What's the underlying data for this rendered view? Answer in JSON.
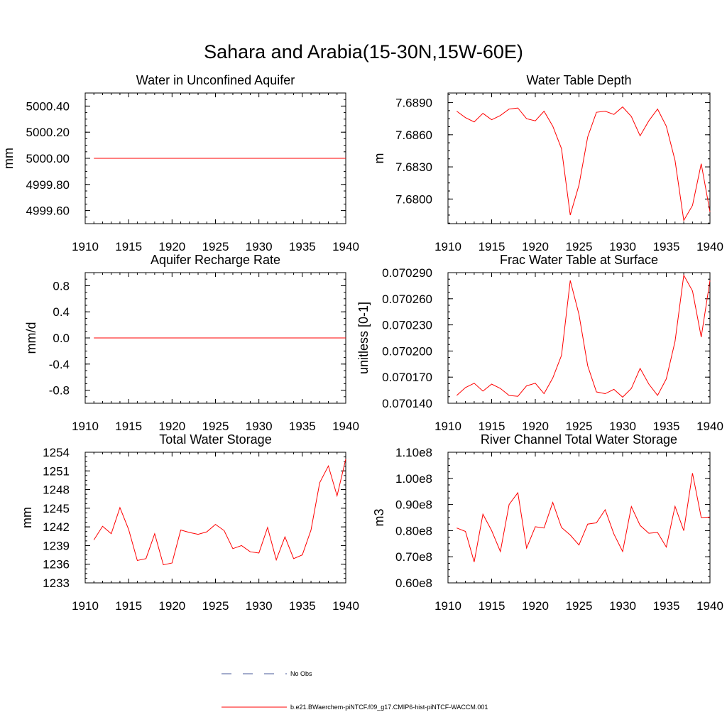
{
  "title": "Sahara and Arabia(15-30N,15W-60E)",
  "colors": {
    "model_line": "#ff0000",
    "obs_line": "#4a5a9a",
    "axes": "#000000"
  },
  "legend": {
    "entries": [
      {
        "label": "No Obs",
        "style": "dashed",
        "color": "#4a5a9a"
      },
      {
        "label": "b.e21.BWaerchem-piNTCF.f09_g17.CMIP6-hist-piNTCF-WACCM.001",
        "style": "solid",
        "color": "#ff0000"
      }
    ]
  },
  "chart_data": [
    {
      "type": "line",
      "title": "Water in Unconfined Aquifer",
      "ylabel": "mm",
      "xlim": [
        1910,
        1940
      ],
      "ylim": [
        4999.5,
        5000.5
      ],
      "xticks": [
        "1910",
        "1915",
        "1920",
        "1925",
        "1930",
        "1935",
        "1940"
      ],
      "yticks": [
        4999.6,
        4999.8,
        5000.0,
        5000.2,
        5000.4
      ],
      "ytick_labels": [
        "4999.60",
        "4999.80",
        "5000.00",
        "5000.20",
        "5000.40"
      ],
      "series": [
        {
          "x": [
            1911,
            1912,
            1913,
            1914,
            1915,
            1916,
            1917,
            1918,
            1919,
            1920,
            1921,
            1922,
            1923,
            1924,
            1925,
            1926,
            1927,
            1928,
            1929,
            1930,
            1931,
            1932,
            1933,
            1934,
            1935,
            1936,
            1937,
            1938,
            1939,
            1940
          ],
          "values": [
            5000,
            5000,
            5000,
            5000,
            5000,
            5000,
            5000,
            5000,
            5000,
            5000,
            5000,
            5000,
            5000,
            5000,
            5000,
            5000,
            5000,
            5000,
            5000,
            5000,
            5000,
            5000,
            5000,
            5000,
            5000,
            5000,
            5000,
            5000,
            5000,
            5000
          ]
        }
      ]
    },
    {
      "type": "line",
      "title": "Water Table Depth",
      "ylabel": "m",
      "xlim": [
        1910,
        1940
      ],
      "ylim": [
        7.6777,
        7.6899
      ],
      "xticks": [
        "1910",
        "1915",
        "1920",
        "1925",
        "1930",
        "1935",
        "1940"
      ],
      "yticks": [
        7.68,
        7.683,
        7.686,
        7.689
      ],
      "ytick_labels": [
        "7.6800",
        "7.6830",
        "7.6860",
        "7.6890"
      ],
      "series": [
        {
          "x": [
            1911,
            1912,
            1913,
            1914,
            1915,
            1916,
            1917,
            1918,
            1919,
            1920,
            1921,
            1922,
            1923,
            1924,
            1925,
            1926,
            1927,
            1928,
            1929,
            1930,
            1931,
            1932,
            1933,
            1934,
            1935,
            1936,
            1937,
            1938,
            1939,
            1940
          ],
          "values": [
            7.6882,
            7.6876,
            7.6872,
            7.688,
            7.6874,
            7.6878,
            7.6884,
            7.6885,
            7.6875,
            7.6873,
            7.6882,
            7.6868,
            7.6847,
            7.6785,
            7.6813,
            7.6858,
            7.6881,
            7.6882,
            7.6879,
            7.6886,
            7.6877,
            7.6859,
            7.6873,
            7.6884,
            7.6868,
            7.6836,
            7.678,
            7.6794,
            7.6833,
            7.6788
          ]
        }
      ]
    },
    {
      "type": "line",
      "title": "Aquifer Recharge Rate",
      "ylabel": "mm/d",
      "xlim": [
        1910,
        1940
      ],
      "ylim": [
        -1.0,
        1.0
      ],
      "xticks": [
        "1910",
        "1915",
        "1920",
        "1925",
        "1930",
        "1935",
        "1940"
      ],
      "yticks": [
        -0.8,
        -0.4,
        0.0,
        0.4,
        0.8
      ],
      "ytick_labels": [
        "-0.8",
        "-0.4",
        "0.0",
        "0.4",
        "0.8"
      ],
      "series": [
        {
          "x": [
            1911,
            1912,
            1913,
            1914,
            1915,
            1916,
            1917,
            1918,
            1919,
            1920,
            1921,
            1922,
            1923,
            1924,
            1925,
            1926,
            1927,
            1928,
            1929,
            1930,
            1931,
            1932,
            1933,
            1934,
            1935,
            1936,
            1937,
            1938,
            1939,
            1940
          ],
          "values": [
            0,
            0,
            0,
            0,
            0,
            0,
            0,
            0,
            0,
            0,
            0,
            0,
            0,
            0,
            0,
            0,
            0,
            0,
            0,
            0,
            0,
            0,
            0,
            0,
            0,
            0,
            0,
            0,
            0,
            0
          ]
        }
      ]
    },
    {
      "type": "line",
      "title": "Frac Water Table at Surface",
      "ylabel": "unitless [0-1]",
      "xlim": [
        1910,
        1940
      ],
      "ylim": [
        0.07014,
        0.07029
      ],
      "xticks": [
        "1910",
        "1915",
        "1920",
        "1925",
        "1930",
        "1935",
        "1940"
      ],
      "yticks": [
        0.07014,
        0.07017,
        0.0702,
        0.07023,
        0.07026,
        0.07029
      ],
      "ytick_labels": [
        "0.070140",
        "0.070170",
        "0.070200",
        "0.070230",
        "0.070260",
        "0.070290"
      ],
      "series": [
        {
          "x": [
            1911,
            1912,
            1913,
            1914,
            1915,
            1916,
            1917,
            1918,
            1919,
            1920,
            1921,
            1922,
            1923,
            1924,
            1925,
            1926,
            1927,
            1928,
            1929,
            1930,
            1931,
            1932,
            1933,
            1934,
            1935,
            1936,
            1937,
            1938,
            1939,
            1940
          ],
          "values": [
            0.070149,
            0.070158,
            0.070163,
            0.070154,
            0.070162,
            0.070157,
            0.070149,
            0.070148,
            0.07016,
            0.070163,
            0.070151,
            0.070169,
            0.070195,
            0.070281,
            0.070242,
            0.070183,
            0.070153,
            0.070151,
            0.070156,
            0.070147,
            0.070157,
            0.07018,
            0.070162,
            0.070149,
            0.070168,
            0.070211,
            0.070287,
            0.070269,
            0.070216,
            0.070281
          ]
        }
      ]
    },
    {
      "type": "line",
      "title": "Total Water Storage",
      "ylabel": "mm",
      "xlim": [
        1910,
        1940
      ],
      "ylim": [
        1233,
        1254
      ],
      "xticks": [
        "1910",
        "1915",
        "1920",
        "1925",
        "1930",
        "1935",
        "1940"
      ],
      "yticks": [
        1233,
        1236,
        1239,
        1242,
        1245,
        1248,
        1251,
        1254
      ],
      "ytick_labels": [
        "1233",
        "1236",
        "1239",
        "1242",
        "1245",
        "1248",
        "1251",
        "1254"
      ],
      "series": [
        {
          "x": [
            1911,
            1912,
            1913,
            1914,
            1915,
            1916,
            1917,
            1918,
            1919,
            1920,
            1921,
            1922,
            1923,
            1924,
            1925,
            1926,
            1927,
            1928,
            1929,
            1930,
            1931,
            1932,
            1933,
            1934,
            1935,
            1936,
            1937,
            1938,
            1939,
            1940
          ],
          "values": [
            1239.9,
            1242.1,
            1240.9,
            1245.1,
            1241.6,
            1236.6,
            1236.9,
            1240.9,
            1235.9,
            1236.2,
            1241.5,
            1241.1,
            1240.8,
            1241.2,
            1242.4,
            1241.4,
            1238.5,
            1239.0,
            1238.0,
            1237.8,
            1241.9,
            1236.7,
            1240.4,
            1236.9,
            1237.5,
            1241.5,
            1249.1,
            1251.8,
            1247.0,
            1252.9
          ]
        }
      ]
    },
    {
      "type": "line",
      "title": "River Channel Total Water Storage",
      "ylabel": "m3",
      "xlim": [
        1910,
        1940
      ],
      "ylim": [
        60000000.0,
        110000000.0
      ],
      "xticks": [
        "1910",
        "1915",
        "1920",
        "1925",
        "1930",
        "1935",
        "1940"
      ],
      "yticks": [
        60000000.0,
        70000000.0,
        80000000.0,
        90000000.0,
        100000000.0,
        110000000.0
      ],
      "ytick_labels": [
        "0.60e8",
        "0.70e8",
        "0.80e8",
        "0.90e8",
        "1.00e8",
        "1.10e8"
      ],
      "series": [
        {
          "x": [
            1911,
            1912,
            1913,
            1914,
            1915,
            1916,
            1917,
            1918,
            1919,
            1920,
            1921,
            1922,
            1923,
            1924,
            1925,
            1926,
            1927,
            1928,
            1929,
            1930,
            1931,
            1932,
            1933,
            1934,
            1935,
            1936,
            1937,
            1938,
            1939,
            1940
          ],
          "values": [
            81000000.0,
            79700000.0,
            68000000.0,
            86300000.0,
            80000000.0,
            72000000.0,
            90000000.0,
            94500000.0,
            73300000.0,
            81500000.0,
            81000000.0,
            90800000.0,
            81200000.0,
            78300000.0,
            74500000.0,
            82500000.0,
            83000000.0,
            88000000.0,
            78700000.0,
            72000000.0,
            89200000.0,
            82000000.0,
            79000000.0,
            79300000.0,
            73700000.0,
            89300000.0,
            80000000.0,
            102000000.0,
            85000000.0,
            85200000.0
          ]
        }
      ]
    }
  ]
}
